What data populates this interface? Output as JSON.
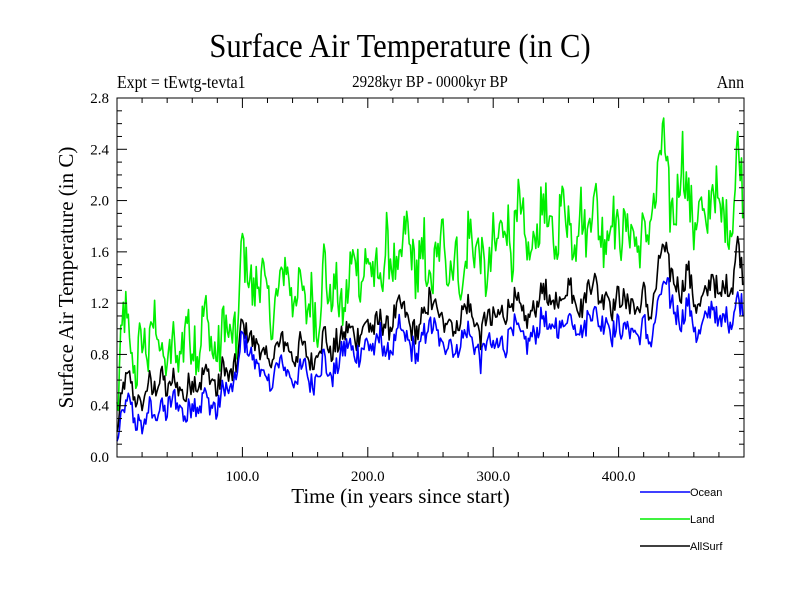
{
  "chart_data": {
    "type": "line",
    "title": "Surface Air Temperature (in C)",
    "subtitle": "2928kyr BP - 0000kyr BP",
    "annotation_left": "Expt = tEwtg-tevta1",
    "annotation_right": "Ann",
    "xlabel": "Time (in years since start)",
    "ylabel": "Surface Air Temperature (in C)",
    "xlim": [
      0,
      500
    ],
    "ylim": [
      0.0,
      2.8
    ],
    "x_ticks": [
      100,
      200,
      300,
      400
    ],
    "x_tick_labels": [
      "100.0",
      "200.0",
      "300.0",
      "400.0"
    ],
    "x_minor_step": 20,
    "y_ticks": [
      0.0,
      0.4,
      0.8,
      1.2,
      1.6,
      2.0,
      2.4,
      2.8
    ],
    "y_tick_labels": [
      "0.0",
      "0.4",
      "0.8",
      "1.2",
      "1.6",
      "2.0",
      "2.4",
      "2.8"
    ],
    "y_minor_step": 0.1,
    "grid": false,
    "legend_position": "bottom-right-outside",
    "x": [
      0,
      5,
      10,
      15,
      20,
      25,
      30,
      35,
      40,
      45,
      50,
      55,
      60,
      65,
      70,
      75,
      80,
      85,
      90,
      95,
      100,
      105,
      110,
      115,
      120,
      125,
      130,
      135,
      140,
      145,
      150,
      155,
      160,
      165,
      170,
      175,
      180,
      185,
      190,
      195,
      200,
      205,
      210,
      215,
      220,
      225,
      230,
      235,
      240,
      245,
      250,
      255,
      260,
      265,
      270,
      275,
      280,
      285,
      290,
      295,
      300,
      305,
      310,
      315,
      320,
      325,
      330,
      335,
      340,
      345,
      350,
      355,
      360,
      365,
      370,
      375,
      380,
      385,
      390,
      395,
      400,
      405,
      410,
      415,
      420,
      425,
      430,
      435,
      440,
      445,
      450,
      455,
      460,
      465,
      470,
      475,
      480,
      485,
      490,
      495,
      499
    ],
    "series": [
      {
        "name": "Ocean",
        "color": "#0000ff",
        "values": [
          0.12,
          0.35,
          0.45,
          0.28,
          0.22,
          0.38,
          0.3,
          0.42,
          0.35,
          0.48,
          0.4,
          0.3,
          0.45,
          0.38,
          0.5,
          0.42,
          0.35,
          0.55,
          0.48,
          0.62,
          0.95,
          0.82,
          0.75,
          0.68,
          0.55,
          0.62,
          0.75,
          0.7,
          0.58,
          0.65,
          0.72,
          0.55,
          0.68,
          0.78,
          0.62,
          0.7,
          0.82,
          0.88,
          0.75,
          0.85,
          0.9,
          0.82,
          0.95,
          0.78,
          0.88,
          1.0,
          0.92,
          0.85,
          0.8,
          0.95,
          1.05,
          0.98,
          0.85,
          0.92,
          0.8,
          0.95,
          1.0,
          0.88,
          0.75,
          0.92,
          0.82,
          0.9,
          0.85,
          1.05,
          0.98,
          0.88,
          0.92,
          1.0,
          1.1,
          0.95,
          1.05,
          0.98,
          1.12,
          1.05,
          0.95,
          1.08,
          1.18,
          1.02,
          1.1,
          0.95,
          1.05,
          0.98,
          1.02,
          0.92,
          1.05,
          0.88,
          1.1,
          1.35,
          1.28,
          1.15,
          1.05,
          1.22,
          1.0,
          0.95,
          1.08,
          1.2,
          1.0,
          1.12,
          1.05,
          1.25,
          1.2
        ]
      },
      {
        "name": "Land",
        "color": "#00ee00",
        "values": [
          0.35,
          1.2,
          0.85,
          0.65,
          0.95,
          0.8,
          1.15,
          0.78,
          0.7,
          0.9,
          0.72,
          1.05,
          0.95,
          0.8,
          1.2,
          0.88,
          0.75,
          1.05,
          0.92,
          0.85,
          1.65,
          1.4,
          1.25,
          1.45,
          1.2,
          1.05,
          1.35,
          1.55,
          1.2,
          1.4,
          1.1,
          1.3,
          0.95,
          1.5,
          1.25,
          1.35,
          1.05,
          1.4,
          1.55,
          1.3,
          1.6,
          1.45,
          1.35,
          1.7,
          1.5,
          1.4,
          1.85,
          1.55,
          1.45,
          1.65,
          1.3,
          1.55,
          1.75,
          1.45,
          1.6,
          1.25,
          1.8,
          1.7,
          1.55,
          1.4,
          1.65,
          1.75,
          1.85,
          1.6,
          1.95,
          1.7,
          1.55,
          1.8,
          2.0,
          1.75,
          1.6,
          2.05,
          1.85,
          1.7,
          1.95,
          1.75,
          2.1,
          1.8,
          1.7,
          1.95,
          1.65,
          1.75,
          1.85,
          1.6,
          1.7,
          1.8,
          2.05,
          2.55,
          2.0,
          1.85,
          2.4,
          2.05,
          1.8,
          1.95,
          1.75,
          2.2,
          1.9,
          1.85,
          1.75,
          2.45,
          2.1
        ]
      },
      {
        "name": "AllSurf",
        "color": "#000000",
        "values": [
          0.18,
          0.55,
          0.62,
          0.45,
          0.4,
          0.58,
          0.5,
          0.65,
          0.52,
          0.6,
          0.55,
          0.48,
          0.62,
          0.55,
          0.7,
          0.6,
          0.5,
          0.72,
          0.62,
          0.7,
          1.05,
          0.95,
          0.88,
          0.85,
          0.72,
          0.78,
          0.9,
          0.92,
          0.75,
          0.85,
          0.88,
          0.72,
          0.82,
          0.98,
          0.8,
          0.88,
          0.95,
          1.02,
          0.92,
          1.0,
          1.05,
          0.98,
          1.08,
          1.0,
          1.05,
          1.2,
          1.1,
          1.02,
          0.98,
          1.12,
          1.25,
          1.15,
          1.05,
          1.1,
          0.98,
          1.15,
          1.2,
          1.05,
          0.95,
          1.1,
          1.05,
          1.12,
          1.08,
          1.25,
          1.2,
          1.05,
          1.12,
          1.2,
          1.35,
          1.15,
          1.25,
          1.2,
          1.38,
          1.25,
          1.15,
          1.3,
          1.4,
          1.22,
          1.3,
          1.15,
          1.25,
          1.2,
          1.22,
          1.12,
          1.28,
          1.1,
          1.35,
          1.65,
          1.5,
          1.35,
          1.25,
          1.5,
          1.22,
          1.15,
          1.3,
          1.45,
          1.22,
          1.35,
          1.3,
          1.7,
          1.45
        ]
      }
    ]
  }
}
